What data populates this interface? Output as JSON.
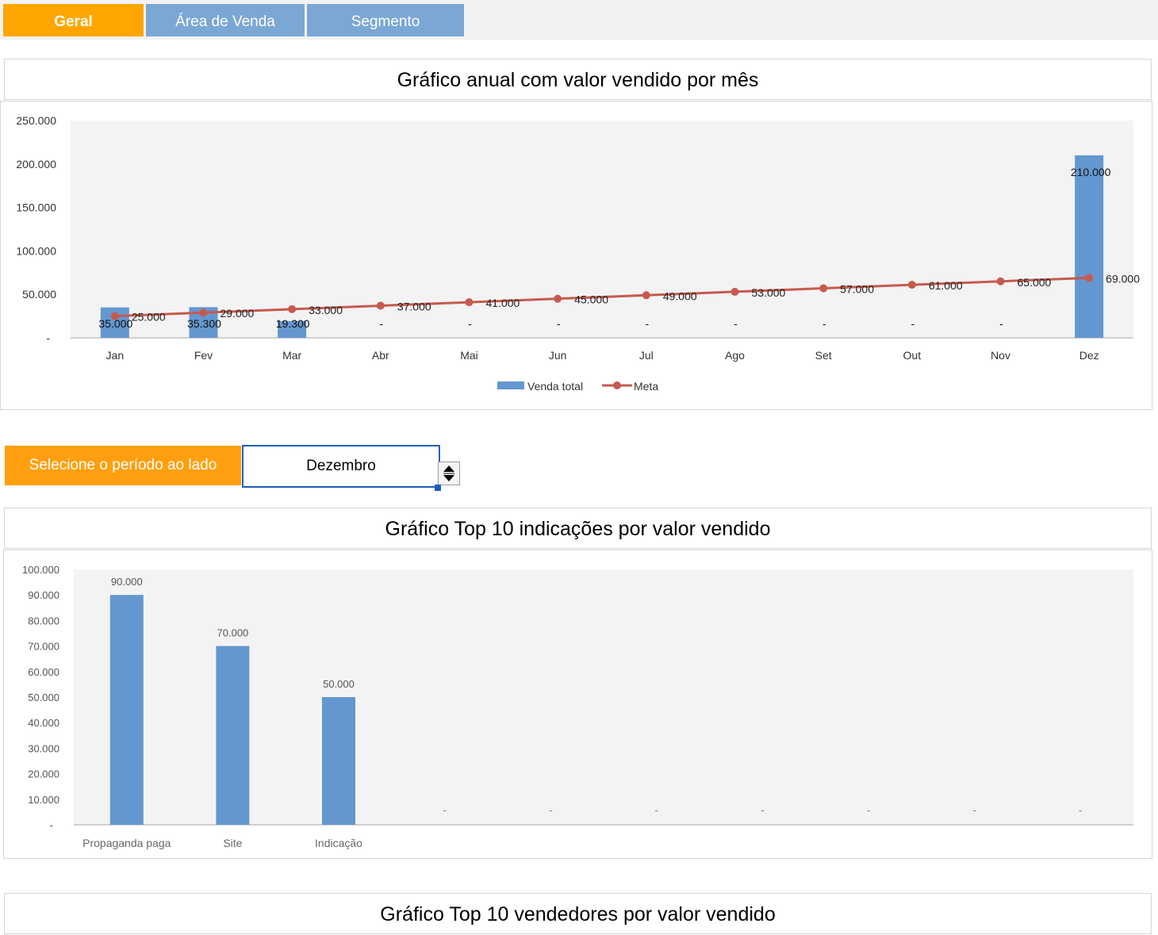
{
  "tabs": [
    {
      "label": "Geral",
      "active": true
    },
    {
      "label": "Área de Venda",
      "active": false
    },
    {
      "label": "Segmento",
      "active": false
    }
  ],
  "chart1": {
    "title": "Gráfico anual com valor vendido por mês",
    "legend": {
      "bar": "Venda total",
      "line": "Meta"
    },
    "ytick_labels": [
      "250.000",
      "200.000",
      "150.000",
      "100.000",
      "50.000",
      "-"
    ],
    "bar_labels": [
      "35.000",
      "35.300",
      "19.300",
      "-",
      "-",
      "-",
      "-",
      "-",
      "-",
      "-",
      "-",
      "210.000"
    ],
    "line_labels": [
      "25.000",
      "29.000",
      "33.000",
      "37.000",
      "41.000",
      "45.000",
      "49.000",
      "53.000",
      "57.000",
      "61.000",
      "65.000",
      "69.000"
    ]
  },
  "period": {
    "label": "Selecione o período ao lado",
    "value": "Dezembro",
    "spinner_icon": "up-down-arrows-icon"
  },
  "chart2": {
    "title": "Gráfico Top 10 indicações por valor vendido",
    "ytick_labels": [
      "100.000",
      "90.000",
      "80.000",
      "70.000",
      "60.000",
      "50.000",
      "40.000",
      "30.000",
      "20.000",
      "10.000",
      "-"
    ],
    "data_labels": [
      "90.000",
      "70.000",
      "50.000",
      "-",
      "-",
      "-",
      "-",
      "-",
      "-",
      "-"
    ]
  },
  "chart3": {
    "title": "Gráfico Top 10 vendedores por valor vendido"
  },
  "colors": {
    "accent": "#ffa500",
    "tab_inactive": "#7ba7d4",
    "bar": "#6497cf",
    "line": "#c65a4e"
  },
  "chart_data": [
    {
      "type": "bar+line",
      "title": "Gráfico anual com valor vendido por mês",
      "categories": [
        "Jan",
        "Fev",
        "Mar",
        "Abr",
        "Mai",
        "Jun",
        "Jul",
        "Ago",
        "Set",
        "Out",
        "Nov",
        "Dez"
      ],
      "series": [
        {
          "name": "Venda total",
          "kind": "bar",
          "values": [
            35000,
            35300,
            19300,
            0,
            0,
            0,
            0,
            0,
            0,
            0,
            0,
            210000
          ]
        },
        {
          "name": "Meta",
          "kind": "line",
          "values": [
            25000,
            29000,
            33000,
            37000,
            41000,
            45000,
            49000,
            53000,
            57000,
            61000,
            65000,
            69000
          ]
        }
      ],
      "ylim": [
        0,
        250000
      ],
      "yticks": [
        0,
        50000,
        100000,
        150000,
        200000,
        250000
      ],
      "legend": "bottom",
      "grid": false
    },
    {
      "type": "bar",
      "title": "Gráfico Top 10 indicações por valor vendido",
      "categories": [
        "Propaganda paga",
        "Site",
        "Indicação",
        "",
        "",
        "",
        "",
        "",
        "",
        ""
      ],
      "values": [
        90000,
        70000,
        50000,
        0,
        0,
        0,
        0,
        0,
        0,
        0
      ],
      "ylim": [
        0,
        100000
      ],
      "yticks": [
        0,
        10000,
        20000,
        30000,
        40000,
        50000,
        60000,
        70000,
        80000,
        90000,
        100000
      ],
      "grid": false
    }
  ]
}
